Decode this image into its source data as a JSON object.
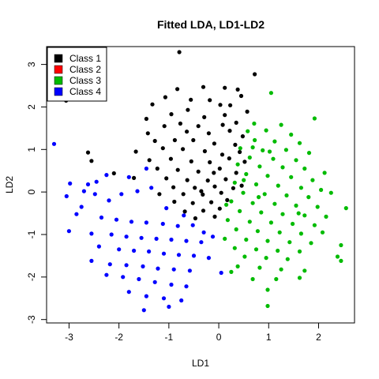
{
  "chart_data": {
    "type": "scatter",
    "title": "Fitted LDA, LD1-LD2",
    "xlabel": "LD1",
    "ylabel": "LD2",
    "xlim": [
      -3.45,
      2.72
    ],
    "ylim": [
      -3.08,
      3.42
    ],
    "x_ticks": [
      -3,
      -2,
      -1,
      0,
      1,
      2
    ],
    "y_ticks": [
      -3,
      -2,
      -1,
      0,
      1,
      2,
      3
    ],
    "legend_position": "top-left",
    "grid": false,
    "series": [
      {
        "name": "Class 1",
        "color": "#000000",
        "points": [
          [
            -0.79,
            3.29
          ],
          [
            -0.31,
            2.47
          ],
          [
            0.72,
            2.77
          ],
          [
            0.12,
            2.45
          ],
          [
            0.38,
            2.41
          ],
          [
            -0.83,
            2.42
          ],
          [
            -1.07,
            2.23
          ],
          [
            -0.56,
            2.17
          ],
          [
            -1.33,
            2.06
          ],
          [
            -0.18,
            2.16
          ],
          [
            0.03,
            2.05
          ],
          [
            0.23,
            2.04
          ],
          [
            0.45,
            2.26
          ],
          [
            -0.62,
            1.93
          ],
          [
            -0.95,
            1.83
          ],
          [
            -1.45,
            1.72
          ],
          [
            0.12,
            1.81
          ],
          [
            -0.29,
            1.76
          ],
          [
            0.57,
            1.89
          ],
          [
            -0.77,
            1.61
          ],
          [
            -1.09,
            1.55
          ],
          [
            -0.41,
            1.55
          ],
          [
            0.08,
            1.58
          ],
          [
            0.35,
            1.63
          ],
          [
            -1.42,
            1.38
          ],
          [
            -0.64,
            1.42
          ],
          [
            -0.2,
            1.38
          ],
          [
            0.22,
            1.44
          ],
          [
            0.48,
            1.31
          ],
          [
            -1.28,
            1.2
          ],
          [
            -0.88,
            1.22
          ],
          [
            -0.51,
            1.22
          ],
          [
            -0.09,
            1.14
          ],
          [
            0.33,
            1.11
          ],
          [
            -1.66,
            0.95
          ],
          [
            -1.12,
            1.03
          ],
          [
            -0.72,
            1.01
          ],
          [
            -0.28,
            0.96
          ],
          [
            0.07,
            0.88
          ],
          [
            0.42,
            0.94
          ],
          [
            -1.39,
            0.75
          ],
          [
            -0.96,
            0.78
          ],
          [
            -0.55,
            0.72
          ],
          [
            -0.18,
            0.7
          ],
          [
            0.21,
            0.79
          ],
          [
            0.52,
            0.71
          ],
          [
            -1.23,
            0.55
          ],
          [
            -0.82,
            0.52
          ],
          [
            -0.41,
            0.48
          ],
          [
            0.02,
            0.55
          ],
          [
            0.35,
            0.45
          ],
          [
            -1.7,
            0.33
          ],
          [
            -1.05,
            0.32
          ],
          [
            -0.63,
            0.28
          ],
          [
            -0.22,
            0.27
          ],
          [
            0.14,
            0.3
          ],
          [
            -0.91,
            0.11
          ],
          [
            -0.48,
            0.1
          ],
          [
            -0.08,
            0.13
          ],
          [
            0.29,
            0.09
          ],
          [
            -1.19,
            -0.05
          ],
          [
            -0.71,
            -0.05
          ],
          [
            -0.32,
            -0.06
          ],
          [
            0.05,
            -0.02
          ],
          [
            -0.89,
            -0.23
          ],
          [
            -0.52,
            -0.26
          ],
          [
            -0.15,
            -0.24
          ],
          [
            0.17,
            -0.19
          ],
          [
            -0.68,
            -0.46
          ],
          [
            -0.31,
            -0.44
          ],
          [
            0.02,
            -0.39
          ],
          [
            -0.47,
            -0.62
          ],
          [
            -0.08,
            -0.58
          ],
          [
            -2.1,
            0.44
          ],
          [
            -2.62,
            0.93
          ],
          [
            -3.06,
            2.15
          ],
          [
            -2.55,
            0.73
          ],
          [
            -0.35,
            0.02
          ],
          [
            -0.1,
            0.45
          ],
          [
            0.46,
            0.15
          ]
        ]
      },
      {
        "name": "Class 2",
        "color": "#ff0000",
        "points": []
      },
      {
        "name": "Class 3",
        "color": "#00bb00",
        "points": [
          [
            1.05,
            2.33
          ],
          [
            1.92,
            1.73
          ],
          [
            0.71,
            1.61
          ],
          [
            1.25,
            1.58
          ],
          [
            0.58,
            1.43
          ],
          [
            0.95,
            1.45
          ],
          [
            1.45,
            1.35
          ],
          [
            0.72,
            1.22
          ],
          [
            1.12,
            1.19
          ],
          [
            1.62,
            1.15
          ],
          [
            0.43,
            1.03
          ],
          [
            0.88,
            0.98
          ],
          [
            1.35,
            0.99
          ],
          [
            1.81,
            0.92
          ],
          [
            0.62,
            0.81
          ],
          [
            1.09,
            0.78
          ],
          [
            1.55,
            0.75
          ],
          [
            0.38,
            0.65
          ],
          [
            0.82,
            0.6
          ],
          [
            1.28,
            0.58
          ],
          [
            1.72,
            0.55
          ],
          [
            2.12,
            0.45
          ],
          [
            0.55,
            0.42
          ],
          [
            0.98,
            0.38
          ],
          [
            1.45,
            0.35
          ],
          [
            1.88,
            0.28
          ],
          [
            0.32,
            0.22
          ],
          [
            0.75,
            0.18
          ],
          [
            1.19,
            0.15
          ],
          [
            1.65,
            0.1
          ],
          [
            2.05,
            0.05
          ],
          [
            0.49,
            -0.02
          ],
          [
            0.92,
            -0.05
          ],
          [
            1.36,
            -0.08
          ],
          [
            1.8,
            -0.12
          ],
          [
            2.25,
            -0.02
          ],
          [
            0.25,
            -0.22
          ],
          [
            0.68,
            -0.26
          ],
          [
            1.12,
            -0.28
          ],
          [
            1.55,
            -0.32
          ],
          [
            1.98,
            -0.35
          ],
          [
            2.55,
            -0.38
          ],
          [
            0.42,
            -0.45
          ],
          [
            0.85,
            -0.48
          ],
          [
            1.28,
            -0.52
          ],
          [
            1.72,
            -0.55
          ],
          [
            2.15,
            -0.58
          ],
          [
            0.18,
            -0.66
          ],
          [
            0.62,
            -0.7
          ],
          [
            1.05,
            -0.72
          ],
          [
            1.48,
            -0.75
          ],
          [
            1.92,
            -0.78
          ],
          [
            0.35,
            -0.88
          ],
          [
            0.78,
            -0.92
          ],
          [
            1.22,
            -0.95
          ],
          [
            1.65,
            -0.98
          ],
          [
            2.08,
            -0.95
          ],
          [
            0.12,
            -1.1
          ],
          [
            0.55,
            -1.12
          ],
          [
            0.98,
            -1.15
          ],
          [
            1.42,
            -1.18
          ],
          [
            1.85,
            -1.2
          ],
          [
            0.32,
            -1.32
          ],
          [
            0.75,
            -1.35
          ],
          [
            1.18,
            -1.38
          ],
          [
            1.62,
            -1.4
          ],
          [
            2.45,
            -1.25
          ],
          [
            0.52,
            -1.52
          ],
          [
            0.95,
            -1.55
          ],
          [
            1.38,
            -1.58
          ],
          [
            2.38,
            -1.52
          ],
          [
            0.38,
            -1.75
          ],
          [
            0.82,
            -1.78
          ],
          [
            1.25,
            -1.82
          ],
          [
            1.72,
            -1.85
          ],
          [
            0.68,
            -2.05
          ],
          [
            1.15,
            -2.05
          ],
          [
            1.62,
            -2.02
          ],
          [
            0.98,
            -2.3
          ],
          [
            0.98,
            -2.68
          ],
          [
            0.25,
            -1.88
          ],
          [
            2.45,
            -1.62
          ],
          [
            0.15,
            -0.3
          ],
          [
            0.5,
            0.28
          ],
          [
            1.02,
            0.95
          ],
          [
            0.8,
            -0.12
          ],
          [
            1.6,
            -0.5
          ],
          [
            0.68,
            1.05
          ]
        ]
      },
      {
        "name": "Class 4",
        "color": "#0000ff",
        "points": [
          [
            -3.3,
            1.13
          ],
          [
            -2.98,
            0.2
          ],
          [
            -2.62,
            0.18
          ],
          [
            -2.45,
            0.24
          ],
          [
            -3.05,
            -0.1
          ],
          [
            -2.75,
            -0.35
          ],
          [
            -2.48,
            -0.05
          ],
          [
            -2.2,
            -0.2
          ],
          [
            -1.95,
            -0.05
          ],
          [
            -1.63,
            0.02
          ],
          [
            -1.45,
            0.55
          ],
          [
            -2.85,
            -0.52
          ],
          [
            -2.35,
            -0.6
          ],
          [
            -2.05,
            -0.65
          ],
          [
            -1.75,
            -0.7
          ],
          [
            -1.45,
            -0.72
          ],
          [
            -1.12,
            -0.75
          ],
          [
            -0.82,
            -0.8
          ],
          [
            -0.52,
            -0.78
          ],
          [
            -3.0,
            -0.92
          ],
          [
            -2.55,
            -0.98
          ],
          [
            -2.15,
            -1.0
          ],
          [
            -1.85,
            -1.05
          ],
          [
            -1.55,
            -1.08
          ],
          [
            -1.25,
            -1.1
          ],
          [
            -0.95,
            -1.12
          ],
          [
            -0.65,
            -1.15
          ],
          [
            -0.35,
            -1.18
          ],
          [
            -2.4,
            -1.28
          ],
          [
            -2.0,
            -1.35
          ],
          [
            -1.7,
            -1.38
          ],
          [
            -1.4,
            -1.4
          ],
          [
            -1.1,
            -1.45
          ],
          [
            -0.8,
            -1.48
          ],
          [
            -0.5,
            -1.5
          ],
          [
            -0.2,
            -1.55
          ],
          [
            -2.55,
            -1.62
          ],
          [
            -2.18,
            -1.7
          ],
          [
            -1.85,
            -1.72
          ],
          [
            -1.52,
            -1.75
          ],
          [
            -1.22,
            -1.8
          ],
          [
            -0.9,
            -1.82
          ],
          [
            -0.58,
            -1.85
          ],
          [
            -2.25,
            -1.95
          ],
          [
            -1.92,
            -2.0
          ],
          [
            -1.6,
            -2.05
          ],
          [
            -1.28,
            -2.12
          ],
          [
            -0.95,
            -2.18
          ],
          [
            -0.65,
            -2.22
          ],
          [
            -1.8,
            -2.35
          ],
          [
            -1.45,
            -2.45
          ],
          [
            -1.1,
            -2.5
          ],
          [
            -0.75,
            -2.55
          ],
          [
            -1.0,
            -2.7
          ],
          [
            -1.5,
            -2.78
          ],
          [
            -0.12,
            -1.05
          ],
          [
            -0.3,
            -0.95
          ],
          [
            0.05,
            -1.9
          ],
          [
            -2.7,
            0.02
          ],
          [
            -2.25,
            0.4
          ],
          [
            -1.35,
            0.1
          ],
          [
            -1.8,
            0.35
          ],
          [
            -0.7,
            -0.55
          ],
          [
            -1.05,
            -0.38
          ]
        ]
      }
    ]
  }
}
